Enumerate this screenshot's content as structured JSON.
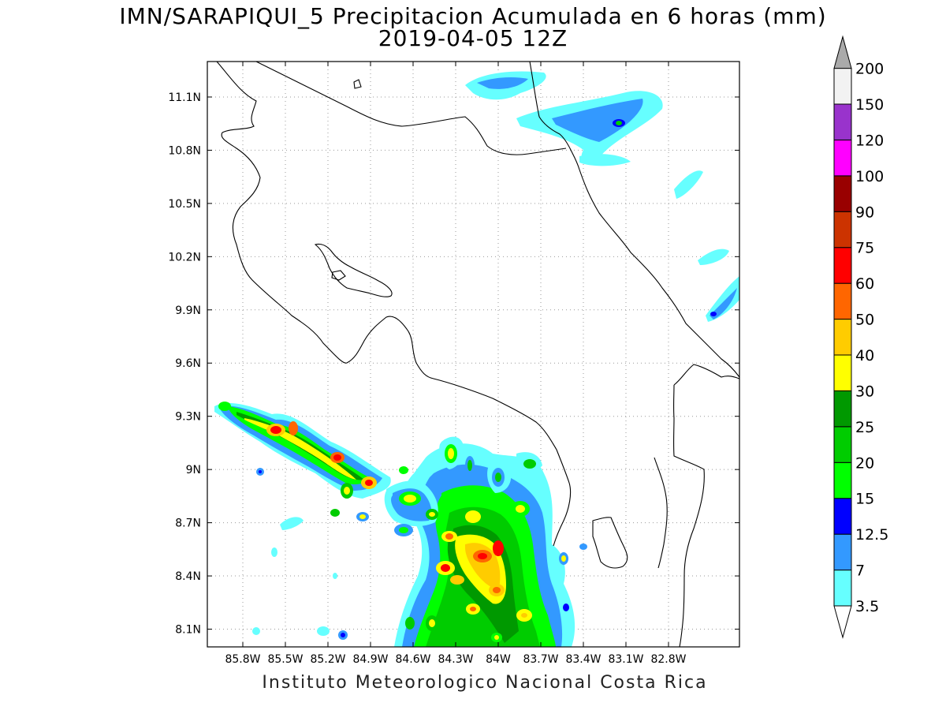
{
  "title_line1": "IMN/SARAPIQUI_5 Precipitacion Acumulada en 6 horas (mm)",
  "title_line2": "2019-04-05 12Z",
  "footer": "Instituto Meteorologico Nacional Costa Rica",
  "map": {
    "lon_range": [
      -86.05,
      -82.3
    ],
    "lat_range": [
      8.0,
      11.3
    ],
    "lat_ticks": [
      "11.1N",
      "10.8N",
      "10.5N",
      "10.2N",
      "9.9N",
      "9.6N",
      "9.3N",
      "9N",
      "8.7N",
      "8.4N",
      "8.1N"
    ],
    "lon_ticks": [
      "85.8W",
      "85.5W",
      "85.2W",
      "84.9W",
      "84.6W",
      "84.3W",
      "84W",
      "83.7W",
      "83.4W",
      "83.1W",
      "82.8W"
    ],
    "grid": "dotted"
  },
  "colorbar": {
    "labels": [
      "3.5",
      "7",
      "12.5",
      "15",
      "20",
      "25",
      "30",
      "40",
      "50",
      "60",
      "75",
      "90",
      "100",
      "120",
      "150",
      "200"
    ],
    "colors": [
      "#66ffff",
      "#3399ff",
      "#0000ff",
      "#00ff00",
      "#00cc00",
      "#009900",
      "#ffff00",
      "#ffcc00",
      "#ff6600",
      "#ff0000",
      "#cc3300",
      "#990000",
      "#ff00ff",
      "#9933cc",
      "#f2f2f2",
      "#aaaaaa"
    ]
  }
}
